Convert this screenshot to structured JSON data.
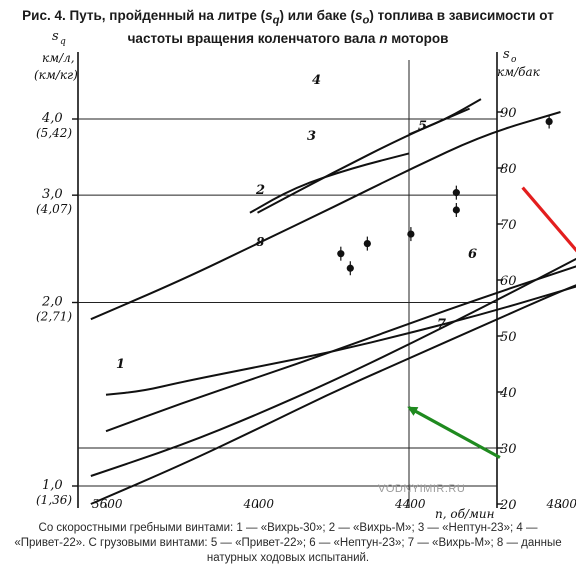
{
  "caption": {
    "prefix": "Рис. 4.",
    "part1": "Путь, пройденный на литре (",
    "sym1": "s",
    "sub1": "q",
    "part2": ") или баке (",
    "sym2": "s",
    "sub2": "o",
    "part3": ") топлива в зависимости от",
    "line2a": "частоты вращения коленчатого вала ",
    "line2sym": "n",
    "line2b": " моторов"
  },
  "footnote": "Со скоростными гребными винтами: 1 — «Вихрь-30»; 2 — «Вихрь-М»; 3 — «Нептун-23»; 4 — «Привет-22». С грузовыми винтами: 5 — «Привет-22»; 6 — «Нептун-23»; 7 — «Вихрь-М»; 8 — данные натурных ходовых испытаний.",
  "watermark": "VODNYIMIR.RU",
  "chart_data": {
    "type": "line",
    "x_axis": {
      "label": "n, об/мин",
      "range": [
        3600,
        4800
      ],
      "ticks": [
        3600,
        4000,
        4400,
        4800
      ],
      "tick_labels": [
        "3600",
        "4000",
        "4400",
        "4800"
      ]
    },
    "y_left": {
      "label_line1": "s",
      "label_sub": "q",
      "label_line2": "км/л",
      "label_line3": "(км/кг)",
      "scale": "log",
      "ticks": [
        {
          "main": "4,0",
          "alt": "(5,42)",
          "value": 4.0
        },
        {
          "main": "3,0",
          "alt": "(4,07)",
          "value": 3.0
        },
        {
          "main": "2,0",
          "alt": "(2,71)",
          "value": 2.0
        },
        {
          "main": "1,0",
          "alt": "(1,36)",
          "value": 1.0
        }
      ]
    },
    "y_right": {
      "label_line1": "s",
      "label_sub": "o",
      "label_line2": "км/бак",
      "range": [
        20,
        90
      ],
      "ticks": [
        20,
        30,
        40,
        50,
        60,
        70,
        80,
        90
      ]
    },
    "series": [
      {
        "name": "1",
        "points": [
          [
            3600,
            39.5
          ],
          [
            3700,
            40.2
          ],
          [
            3800,
            41.8
          ],
          [
            4000,
            44.5
          ],
          [
            4200,
            47.2
          ],
          [
            4400,
            50.5
          ],
          [
            4600,
            54.0
          ],
          [
            4800,
            58.0
          ],
          [
            4885,
            59.7
          ]
        ]
      },
      {
        "name": "2",
        "points": [
          [
            3980,
            72.0
          ],
          [
            4100,
            76.6
          ],
          [
            4250,
            80.0
          ],
          [
            4400,
            82.6
          ]
        ]
      },
      {
        "name": "3",
        "points": [
          [
            4000,
            72.0
          ],
          [
            4200,
            79.2
          ],
          [
            4400,
            86.0
          ],
          [
            4560,
            90.6
          ]
        ]
      },
      {
        "name": "4",
        "points": [
          [
            4400,
            86.0
          ],
          [
            4500,
            88.8
          ],
          [
            4590,
            92.3
          ]
        ]
      },
      {
        "name": "5",
        "points": [
          [
            3560,
            53.0
          ],
          [
            3800,
            60.0
          ],
          [
            4000,
            66.5
          ],
          [
            4200,
            73.0
          ],
          [
            4400,
            79.7
          ],
          [
            4600,
            86.0
          ],
          [
            4800,
            90.0
          ]
        ]
      },
      {
        "name": "6",
        "points": [
          [
            3560,
            20.0
          ],
          [
            3800,
            27.0
          ],
          [
            4000,
            33.4
          ],
          [
            4200,
            40.0
          ],
          [
            4400,
            46.0
          ],
          [
            4600,
            52.0
          ],
          [
            4800,
            58.0
          ],
          [
            4885,
            60.2
          ]
        ]
      },
      {
        "name": "7",
        "points": [
          [
            3600,
            33.0
          ],
          [
            3800,
            38.0
          ],
          [
            4000,
            42.6
          ],
          [
            4200,
            47.3
          ],
          [
            4400,
            52.2
          ],
          [
            4600,
            57.0
          ],
          [
            4800,
            61.5
          ],
          [
            4885,
            63.4
          ]
        ]
      },
      {
        "name": "8",
        "points": [
          [
            3560,
            25.0
          ],
          [
            3800,
            30.5
          ],
          [
            4000,
            36.0
          ],
          [
            4200,
            42.0
          ],
          [
            4400,
            48.5
          ],
          [
            4600,
            55.3
          ],
          [
            4800,
            62.3
          ],
          [
            4885,
            65.3
          ]
        ]
      }
    ],
    "test_points": [
      {
        "x": 4220,
        "y": 64.7
      },
      {
        "x": 4245,
        "y": 62.1
      },
      {
        "x": 4290,
        "y": 66.5
      },
      {
        "x": 4405,
        "y": 68.2
      },
      {
        "x": 4525,
        "y": 75.6
      },
      {
        "x": 4525,
        "y": 72.5
      },
      {
        "x": 4770,
        "y": 88.3
      }
    ],
    "test_label": "8",
    "arrows": [
      {
        "color": "#e31e1e",
        "from": [
          4700,
          76.5
        ],
        "to": [
          4890,
          61.5
        ]
      },
      {
        "color": "#1f8a1f",
        "from": [
          4640,
          28.3
        ],
        "to": [
          4400,
          37.2
        ]
      }
    ],
    "grid": "horizontal and vertical guide lines"
  }
}
